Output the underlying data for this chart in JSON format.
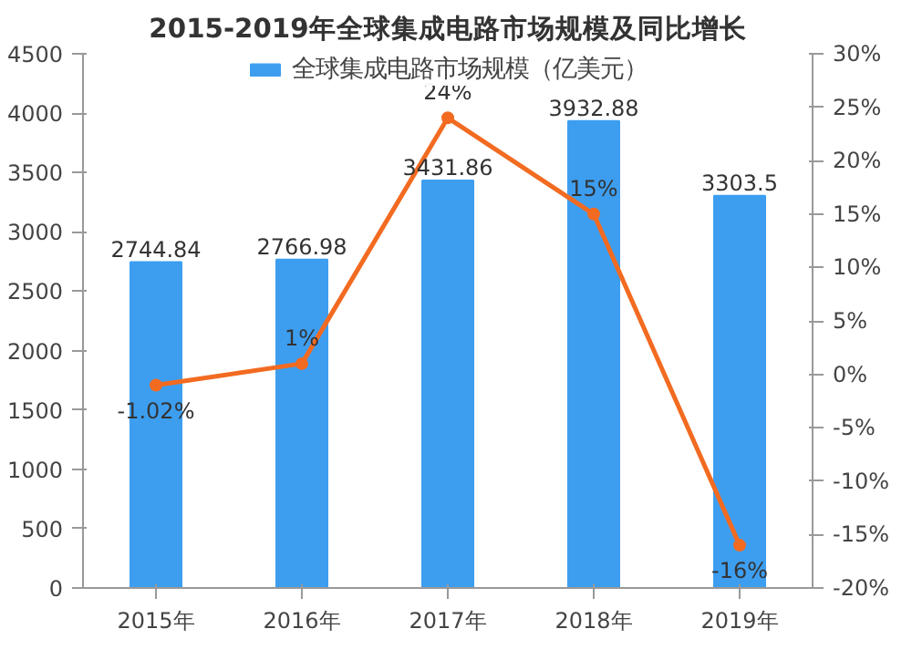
{
  "chart_data": {
    "type": "bar",
    "title": "2015-2019年全球集成电路市场规模及同比增长",
    "categories": [
      "2015年",
      "2016年",
      "2017年",
      "2018年",
      "2019年"
    ],
    "series": [
      {
        "name": "全球集成电路市场规模（亿美元）",
        "color": "#3d9ef0",
        "values": [
          2744.84,
          2766.98,
          3431.86,
          3932.88,
          3303.5
        ],
        "value_labels": [
          "2744.84",
          "2766.98",
          "3431.86",
          "3932.88",
          "3303.5"
        ]
      },
      {
        "type": "line",
        "axis": "y2",
        "color": "#f26b21",
        "values": [
          -1.02,
          1,
          24,
          15,
          -16
        ],
        "value_labels": [
          "-1.02%",
          "1%",
          "24%",
          "15%",
          "-16%"
        ],
        "marker": "circle"
      }
    ],
    "ylim": [
      0,
      4500
    ],
    "yticks": [
      0,
      500,
      1000,
      1500,
      2000,
      2500,
      3000,
      3500,
      4000,
      4500
    ],
    "y2lim": [
      -20,
      30
    ],
    "y2ticks": [
      {
        "value": -20,
        "label": "-20%"
      },
      {
        "value": -15,
        "label": "-15%"
      },
      {
        "value": -10,
        "label": "-10%"
      },
      {
        "value": -5,
        "label": "-5%"
      },
      {
        "value": 0,
        "label": "0%"
      },
      {
        "value": 5,
        "label": "5%"
      },
      {
        "value": 10,
        "label": "10%"
      },
      {
        "value": 15,
        "label": "15%"
      },
      {
        "value": 20,
        "label": "20%"
      },
      {
        "value": 25,
        "label": "25%"
      },
      {
        "value": 30,
        "label": "30%"
      }
    ],
    "grid": false,
    "legend": "top"
  }
}
